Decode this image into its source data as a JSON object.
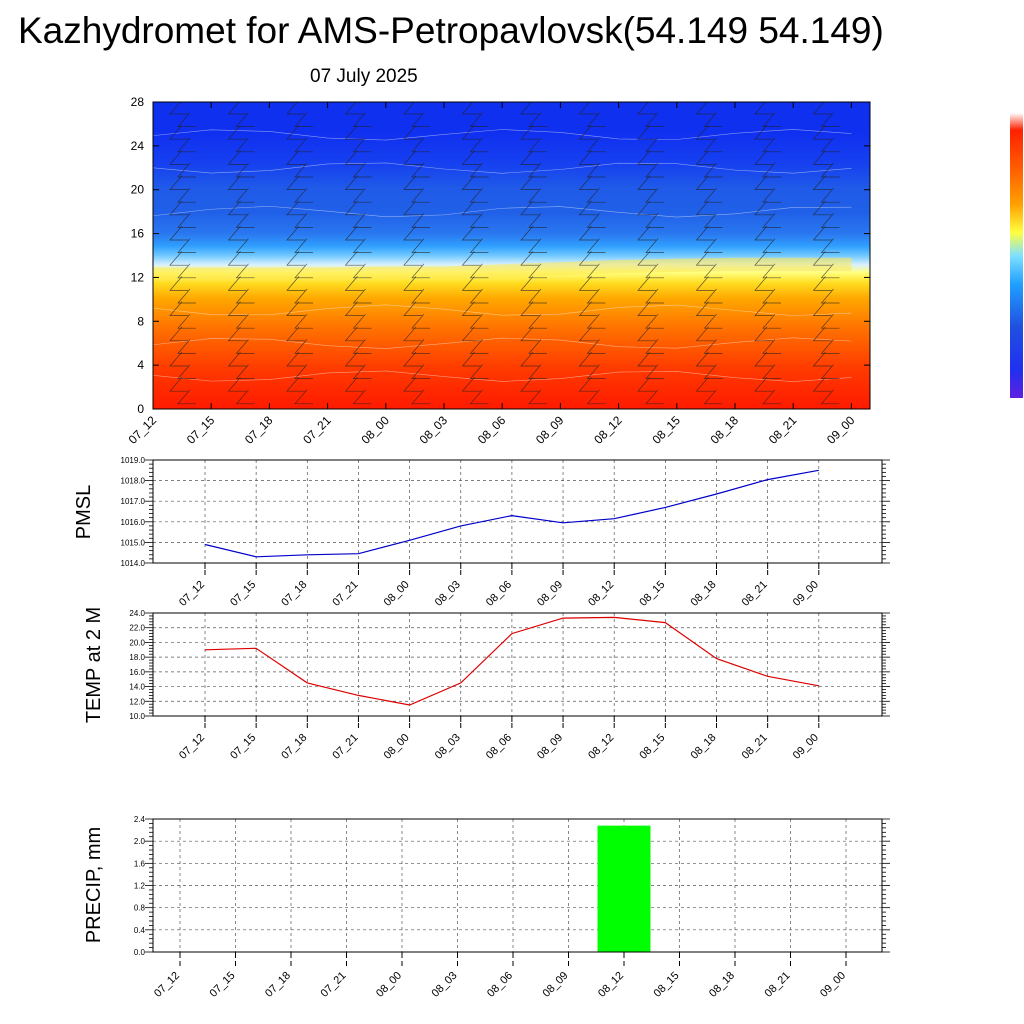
{
  "header": {
    "title": "Kazhydromet for AMS-Petropavlovsk(54.149 54.149)",
    "date": "07 July 2025"
  },
  "time_labels": [
    "07_12",
    "07_15",
    "07_18",
    "07_21",
    "08_00",
    "08_03",
    "08_06",
    "08_09",
    "08_12",
    "08_15",
    "08_18",
    "08_21",
    "09_00"
  ],
  "chart_data": [
    {
      "type": "heatmap",
      "title": "",
      "xlabel": "",
      "ylabel": "",
      "x": [
        "07_12",
        "07_15",
        "07_18",
        "07_21",
        "08_00",
        "08_03",
        "08_06",
        "08_09",
        "08_12",
        "08_15",
        "08_18",
        "08_21",
        "09_00"
      ],
      "yticks": [
        0,
        4,
        8,
        12,
        16,
        20,
        24,
        28
      ],
      "ylim": [
        0,
        28
      ],
      "has_wind_barbs": true,
      "colorbar": "blue-to-red, no labels",
      "freezing_level_y": [
        12.3,
        12.3,
        12.3,
        12.3,
        12.4,
        12.4,
        12.6,
        12.8,
        13.0,
        13.1,
        13.2,
        13.2,
        13.2
      ]
    },
    {
      "type": "line",
      "ylabel": "PMSL",
      "x": [
        "07_12",
        "07_15",
        "07_18",
        "07_21",
        "08_00",
        "08_03",
        "08_06",
        "08_09",
        "08_12",
        "08_15",
        "08_18",
        "08_21",
        "09_00"
      ],
      "values": [
        1014.9,
        1014.3,
        1014.4,
        1014.45,
        1015.1,
        1015.8,
        1016.3,
        1015.95,
        1016.15,
        1016.7,
        1017.35,
        1018.05,
        1018.5
      ],
      "yticks": [
        "1014.0",
        "1015.0",
        "1016.0",
        "1017.0",
        "1018.0",
        "1019.0"
      ],
      "ylim": [
        1014,
        1019
      ],
      "grid": true,
      "color": "#0000cc"
    },
    {
      "type": "line",
      "ylabel": "TEMP at 2 M",
      "x": [
        "07_12",
        "07_15",
        "07_18",
        "07_21",
        "08_00",
        "08_03",
        "08_06",
        "08_09",
        "08_12",
        "08_15",
        "08_18",
        "08_21",
        "09_00"
      ],
      "values": [
        19.0,
        19.2,
        14.5,
        12.8,
        11.5,
        14.5,
        21.2,
        23.3,
        23.4,
        22.7,
        17.8,
        15.4,
        14.1
      ],
      "yticks": [
        "10.0",
        "12.0",
        "14.0",
        "16.0",
        "18.0",
        "20.0",
        "22.0",
        "24.0"
      ],
      "ylim": [
        10,
        24
      ],
      "grid": true,
      "color": "#dd0000"
    },
    {
      "type": "bar",
      "ylabel": "PRECIP, mm",
      "categories": [
        "07_12",
        "07_15",
        "07_18",
        "07_21",
        "08_00",
        "08_03",
        "08_06",
        "08_09",
        "08_12",
        "08_15",
        "08_18",
        "08_21",
        "09_00"
      ],
      "values": [
        0,
        0,
        0,
        0,
        0,
        0,
        0,
        0,
        2.28,
        0,
        0,
        0,
        0
      ],
      "yticks": [
        "0.0",
        "0.4",
        "0.8",
        "1.2",
        "1.6",
        "2.0",
        "2.4"
      ],
      "ylim": [
        0,
        2.4
      ],
      "grid": true,
      "color": "#00ff00"
    }
  ]
}
